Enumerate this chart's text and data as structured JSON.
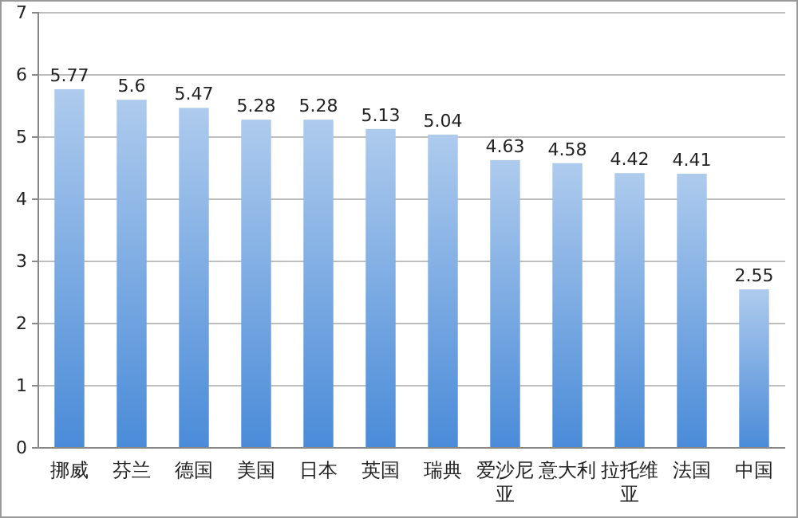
{
  "chart_data": {
    "type": "bar",
    "categories": [
      "挪威",
      "芬兰",
      "德国",
      "美国",
      "日本",
      "英国",
      "瑞典",
      "爱沙尼亚",
      "意大利",
      "拉托维亚",
      "法国",
      "中国"
    ],
    "values": [
      5.77,
      5.6,
      5.47,
      5.28,
      5.28,
      5.13,
      5.04,
      4.63,
      4.58,
      4.42,
      4.41,
      2.55
    ],
    "color": "#4a8bd8",
    "ylim": [
      0,
      7
    ],
    "yticks": [
      0,
      1,
      2,
      3,
      4,
      5,
      6,
      7
    ],
    "grid": "y",
    "data_labels": true
  }
}
